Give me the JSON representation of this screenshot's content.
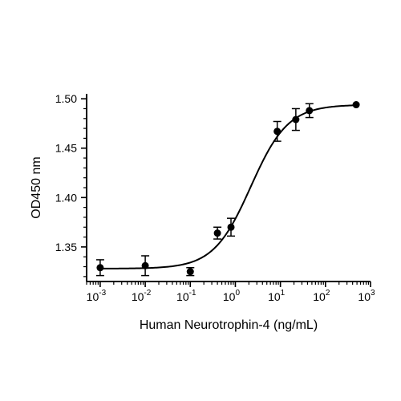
{
  "chart_data": {
    "type": "scatter",
    "xlabel": "Human Neurotrophin-4 (ng/mL)",
    "ylabel": "OD450 nm",
    "x_scale": "log",
    "x_range": [
      0.0005,
      1000
    ],
    "ylim": [
      1.315,
      1.505
    ],
    "x_ticks": [
      {
        "value": 0.001,
        "base": "10",
        "exp": "-3"
      },
      {
        "value": 0.01,
        "base": "10",
        "exp": "-2"
      },
      {
        "value": 0.1,
        "base": "10",
        "exp": "-1"
      },
      {
        "value": 1,
        "base": "10",
        "exp": "0"
      },
      {
        "value": 10,
        "base": "10",
        "exp": "1"
      },
      {
        "value": 100,
        "base": "10",
        "exp": "2"
      },
      {
        "value": 1000,
        "base": "10",
        "exp": "3"
      }
    ],
    "y_ticks": [
      {
        "value": 1.35,
        "label": "1.35"
      },
      {
        "value": 1.4,
        "label": "1.40"
      },
      {
        "value": 1.45,
        "label": "1.45"
      },
      {
        "value": 1.5,
        "label": "1.50"
      }
    ],
    "grid": false,
    "legend": "none",
    "points": [
      {
        "x": 0.001,
        "y": 1.329,
        "err": 0.008
      },
      {
        "x": 0.01,
        "y": 1.331,
        "err": 0.01
      },
      {
        "x": 0.1,
        "y": 1.325,
        "err": 0.004
      },
      {
        "x": 0.4,
        "y": 1.364,
        "err": 0.006
      },
      {
        "x": 0.8,
        "y": 1.37,
        "err": 0.009
      },
      {
        "x": 8.5,
        "y": 1.467,
        "err": 0.01
      },
      {
        "x": 22,
        "y": 1.479,
        "err": 0.011
      },
      {
        "x": 44,
        "y": 1.488,
        "err": 0.007
      },
      {
        "x": 480,
        "y": 1.494,
        "err": 0
      }
    ],
    "fit": {
      "model": "4PL",
      "bottom": 1.328,
      "top": 1.494,
      "ec50": 2.2,
      "hill": 1.05,
      "x_from": 0.001,
      "x_to": 480
    },
    "color": "#000000"
  }
}
